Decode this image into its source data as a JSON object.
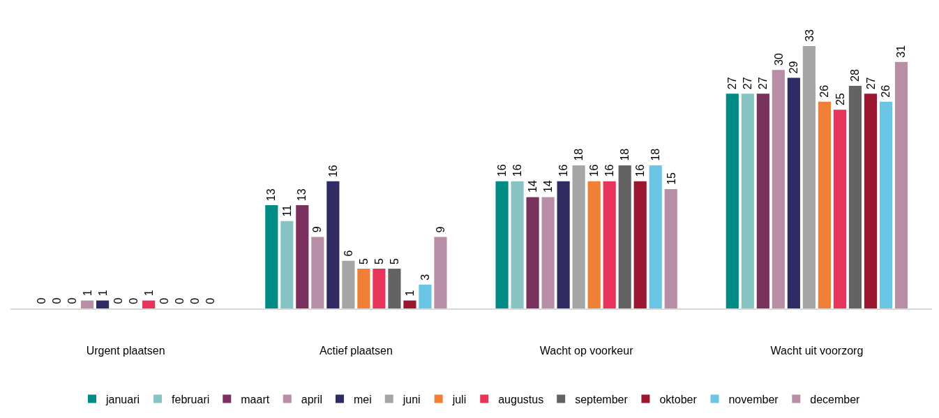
{
  "chart_data": {
    "type": "bar",
    "categories": [
      "Urgent plaatsen",
      "Actief plaatsen",
      "Wacht op voorkeur",
      "Wacht uit voorzorg"
    ],
    "data_labels": true,
    "legend": "bottom",
    "grid": false,
    "series": [
      {
        "name": "januari",
        "color": "#008b84",
        "values": [
          0,
          13,
          16,
          27
        ]
      },
      {
        "name": "februari",
        "color": "#87c3c3",
        "values": [
          0,
          11,
          16,
          27
        ]
      },
      {
        "name": "maart",
        "color": "#7b315e",
        "values": [
          0,
          13,
          14,
          27
        ]
      },
      {
        "name": "april",
        "color": "#b88ea6",
        "values": [
          1,
          9,
          14,
          30
        ]
      },
      {
        "name": "mei",
        "color": "#302b63",
        "values": [
          1,
          16,
          16,
          29
        ]
      },
      {
        "name": "juni",
        "color": "#a5a5a5",
        "values": [
          0,
          6,
          18,
          33
        ]
      },
      {
        "name": "juli",
        "color": "#ef8035",
        "values": [
          0,
          5,
          16,
          26
        ]
      },
      {
        "name": "augustus",
        "color": "#e8335a",
        "values": [
          1,
          5,
          16,
          25
        ]
      },
      {
        "name": "september",
        "color": "#636363",
        "values": [
          0,
          5,
          18,
          28
        ]
      },
      {
        "name": "oktober",
        "color": "#9b1730",
        "values": [
          0,
          1,
          16,
          27
        ]
      },
      {
        "name": "november",
        "color": "#6bc6e6",
        "values": [
          0,
          3,
          18,
          26
        ]
      },
      {
        "name": "december",
        "color": "#b88ea6",
        "values": [
          0,
          9,
          15,
          31
        ]
      }
    ]
  }
}
